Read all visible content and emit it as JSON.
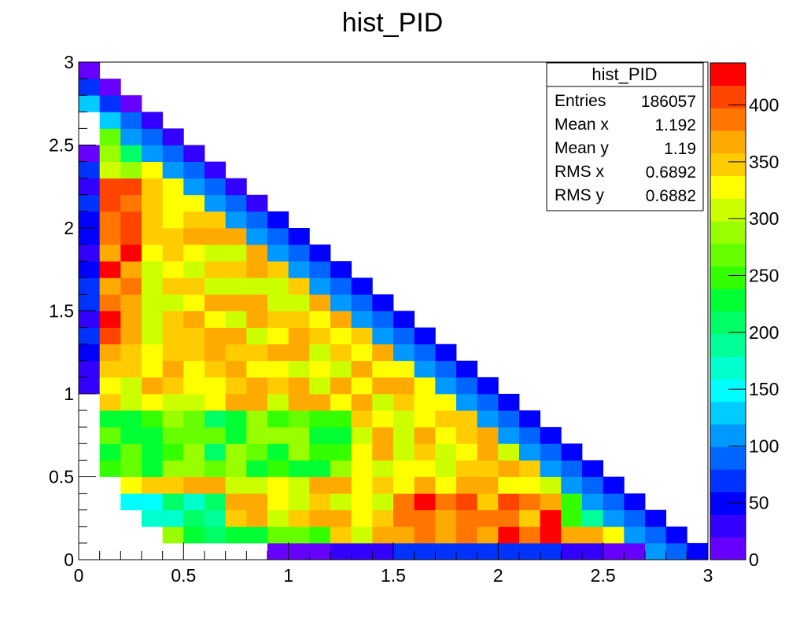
{
  "chart_data": {
    "type": "heatmap",
    "title": "hist_PID",
    "xlabel": "",
    "ylabel": "",
    "xlim": [
      0,
      3
    ],
    "ylim": [
      0,
      3
    ],
    "zlim": [
      0,
      437
    ],
    "x_ticks": [
      {
        "value": 0,
        "label": "0"
      },
      {
        "value": 0.5,
        "label": "0.5"
      },
      {
        "value": 1,
        "label": "1"
      },
      {
        "value": 1.5,
        "label": "1.5"
      },
      {
        "value": 2,
        "label": "2"
      },
      {
        "value": 2.5,
        "label": "2.5"
      },
      {
        "value": 3,
        "label": "3"
      }
    ],
    "y_ticks": [
      {
        "value": 0,
        "label": "0"
      },
      {
        "value": 0.5,
        "label": "0.5"
      },
      {
        "value": 1,
        "label": "1"
      },
      {
        "value": 1.5,
        "label": "1.5"
      },
      {
        "value": 2,
        "label": "2"
      },
      {
        "value": 2.5,
        "label": "2.5"
      },
      {
        "value": 3,
        "label": "3"
      }
    ],
    "z_ticks": [
      {
        "value": 0,
        "label": "0"
      },
      {
        "value": 50,
        "label": "50"
      },
      {
        "value": 100,
        "label": "100"
      },
      {
        "value": 150,
        "label": "150"
      },
      {
        "value": 200,
        "label": "200"
      },
      {
        "value": 250,
        "label": "250"
      },
      {
        "value": 300,
        "label": "300"
      },
      {
        "value": 350,
        "label": "350"
      },
      {
        "value": 400,
        "label": "400"
      }
    ],
    "bins": {
      "nx": 30,
      "ny": 30
    },
    "palette": [
      "#6600ff",
      "#3300ff",
      "#0000ff",
      "#0033ff",
      "#0066ff",
      "#0099ff",
      "#00ccff",
      "#00ffff",
      "#00ffcc",
      "#00ff99",
      "#00ff66",
      "#00ff33",
      "#33ff00",
      "#66ff00",
      "#99ff00",
      "#ccff00",
      "#ffff00",
      "#ffcc00",
      "#ffaa00",
      "#ff7700",
      "#ff4400",
      "#ff0000"
    ],
    "stats": {
      "title": "hist_PID",
      "rows": [
        {
          "label": "Entries",
          "value": "186057"
        },
        {
          "label": "Mean x",
          "value": "1.192"
        },
        {
          "label": "Mean y",
          "value": "1.19"
        },
        {
          "label": "RMS x",
          "value": "0.6892"
        },
        {
          "label": "RMS y",
          "value": "0.6882"
        }
      ]
    },
    "grid": false,
    "legend": "none",
    "colorbar": "right"
  }
}
